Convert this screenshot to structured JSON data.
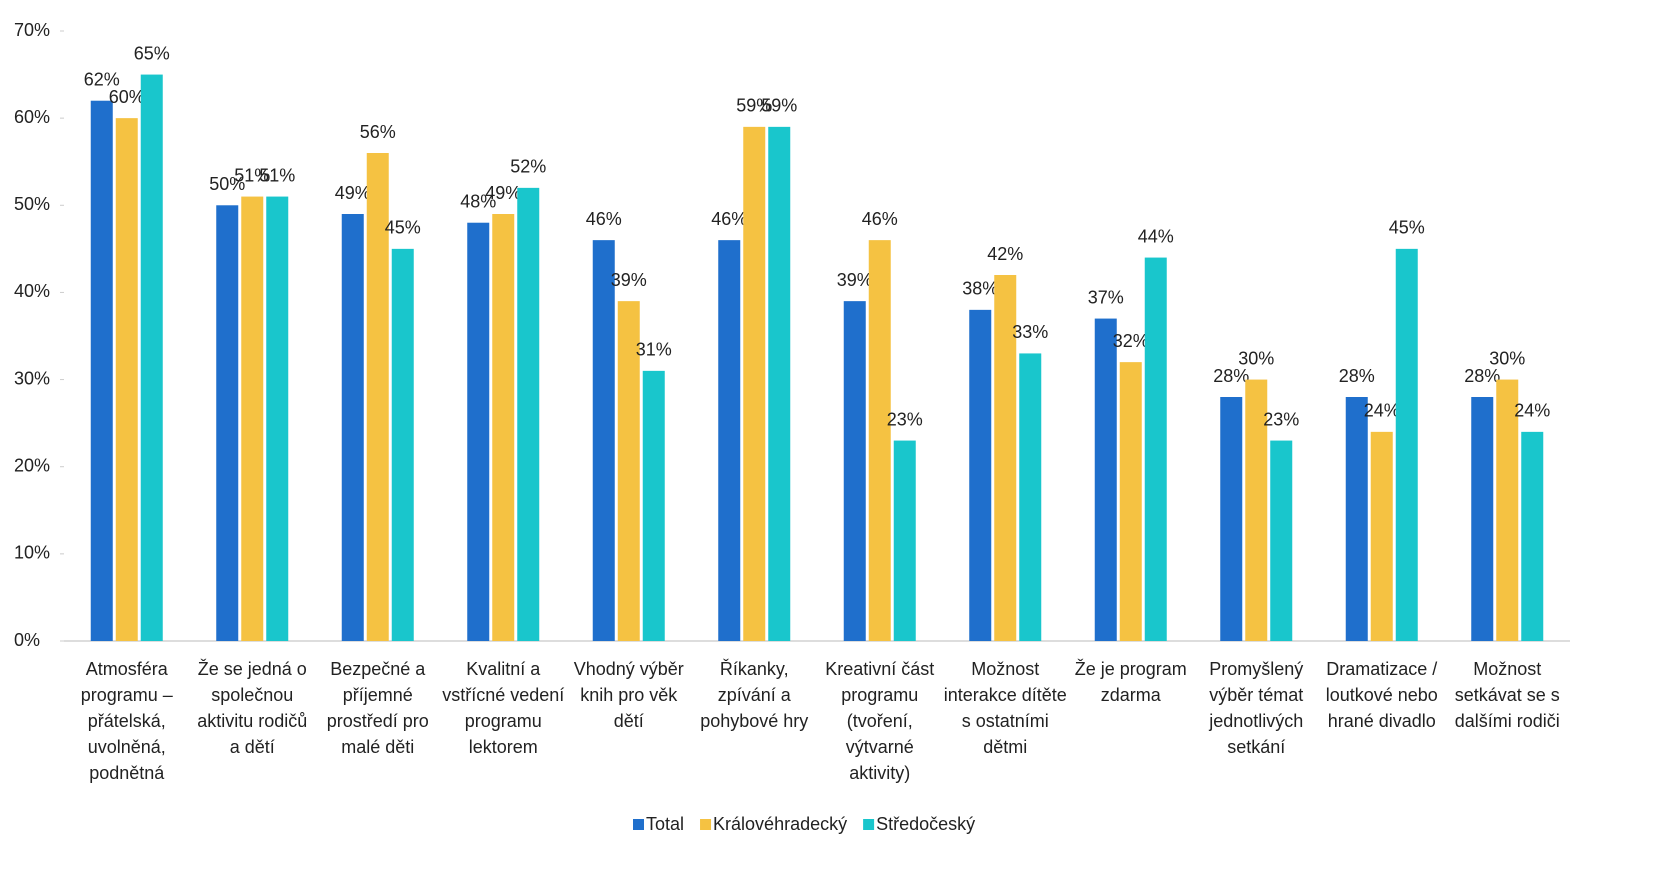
{
  "chart_data": {
    "type": "bar",
    "categories": [
      "Atmosféra programu – přátelská, uvolněná, podnětná",
      "Že se jedná o společnou aktivitu rodičů a dětí",
      "Bezpečné a příjemné prostředí pro malé děti",
      "Kvalitní a vstřícné vedení programu lektorem",
      "Vhodný výběr knih pro věk dětí",
      "Říkanky, zpívání a pohybové hry",
      "Kreativní část programu (tvoření, výtvarné aktivity)",
      "Možnost interakce dítěte s ostatními dětmi",
      "Že je program zdarma",
      "Promyšlený výběr témat jednotlivých setkání",
      "Dramatizace / loutkové nebo hrané divadlo",
      "Možnost setkávat se s dalšími rodiči"
    ],
    "series": [
      {
        "name": "Total",
        "color": "#1f6fcc",
        "values": [
          62,
          50,
          49,
          48,
          46,
          46,
          39,
          38,
          37,
          28,
          28,
          28
        ],
        "value_labels": [
          "62%",
          "50%",
          "49%",
          "48%",
          "46%",
          "46%",
          "39%",
          "38%",
          "37%",
          "28%",
          "28%",
          "28%"
        ]
      },
      {
        "name": "Královéhradecký",
        "color": "#f5c242",
        "values": [
          60,
          51,
          56,
          49,
          39,
          59,
          46,
          42,
          32,
          30,
          24,
          30
        ],
        "value_labels": [
          "60%",
          "51%",
          "56%",
          "49%",
          "39%",
          "59%",
          "46%",
          "42%",
          "32%",
          "30%",
          "24%",
          "30%"
        ]
      },
      {
        "name": "Středočeský",
        "color": "#19c6cc",
        "values": [
          65,
          51,
          45,
          52,
          31,
          59,
          23,
          33,
          44,
          23,
          45,
          24
        ],
        "value_labels": [
          "65%",
          "51%",
          "45%",
          "52%",
          "31%",
          "59%",
          "23%",
          "33%",
          "44%",
          "23%",
          "45%",
          "24%"
        ]
      }
    ],
    "ylim": [
      0,
      70
    ],
    "yticks": [
      {
        "value": 0,
        "label": "0%"
      },
      {
        "value": 10,
        "label": "10%"
      },
      {
        "value": 20,
        "label": "20%"
      },
      {
        "value": 30,
        "label": "30%"
      },
      {
        "value": 40,
        "label": "40%"
      },
      {
        "value": 50,
        "label": "50%"
      },
      {
        "value": 60,
        "label": "60%"
      },
      {
        "value": 70,
        "label": "70%"
      }
    ],
    "legend": "bottom"
  }
}
